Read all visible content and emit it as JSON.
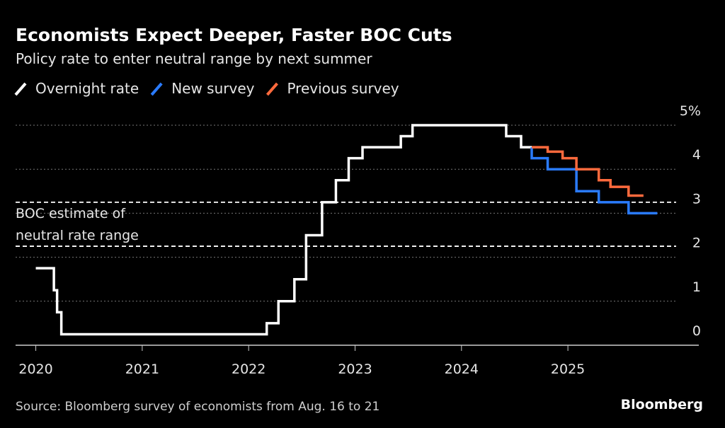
{
  "chart_data": {
    "type": "line",
    "step": true,
    "title": "Economists Expect Deeper, Faster BOC Cuts",
    "subtitle": "Policy rate to enter neutral range by next summer",
    "source": "Source: Bloomberg survey of economists from Aug. 16 to 21",
    "brand": "Bloomberg",
    "annotation": {
      "lines": [
        "BOC estimate of",
        "neutral rate range"
      ],
      "range": [
        2.25,
        3.25
      ]
    },
    "xlim": [
      2019.81,
      2026.23
    ],
    "xticks": [
      2020,
      2021,
      2022,
      2023,
      2024,
      2025
    ],
    "ylim": [
      0,
      5
    ],
    "yticks": [
      0,
      1,
      2,
      3,
      4,
      {
        "value": 5,
        "label": "5%"
      }
    ],
    "grid": true,
    "series": [
      {
        "name": "Overnight rate",
        "color": "#ffffff",
        "x": [
          2020.0,
          2020.17,
          2020.2,
          2020.24,
          2022.17,
          2022.28,
          2022.43,
          2022.54,
          2022.69,
          2022.82,
          2022.94,
          2023.07,
          2023.43,
          2023.54,
          2024.42,
          2024.56,
          2024.66
        ],
        "values": [
          1.75,
          1.25,
          0.75,
          0.25,
          0.5,
          1.0,
          1.5,
          2.5,
          3.25,
          3.75,
          4.25,
          4.5,
          4.75,
          5.0,
          4.75,
          4.5,
          4.5
        ]
      },
      {
        "name": "New survey",
        "color": "#2a7bff",
        "x": [
          2024.66,
          2024.66,
          2024.81,
          2025.08,
          2025.29,
          2025.57,
          2025.84
        ],
        "values": [
          4.5,
          4.25,
          4.0,
          3.5,
          3.25,
          3.0,
          3.0
        ]
      },
      {
        "name": "Previous survey",
        "color": "#ff6a3d",
        "x": [
          2024.66,
          2024.81,
          2024.95,
          2025.08,
          2025.29,
          2025.4,
          2025.57,
          2025.71
        ],
        "values": [
          4.5,
          4.4,
          4.25,
          4.0,
          3.75,
          3.6,
          3.4,
          3.4
        ]
      }
    ]
  }
}
